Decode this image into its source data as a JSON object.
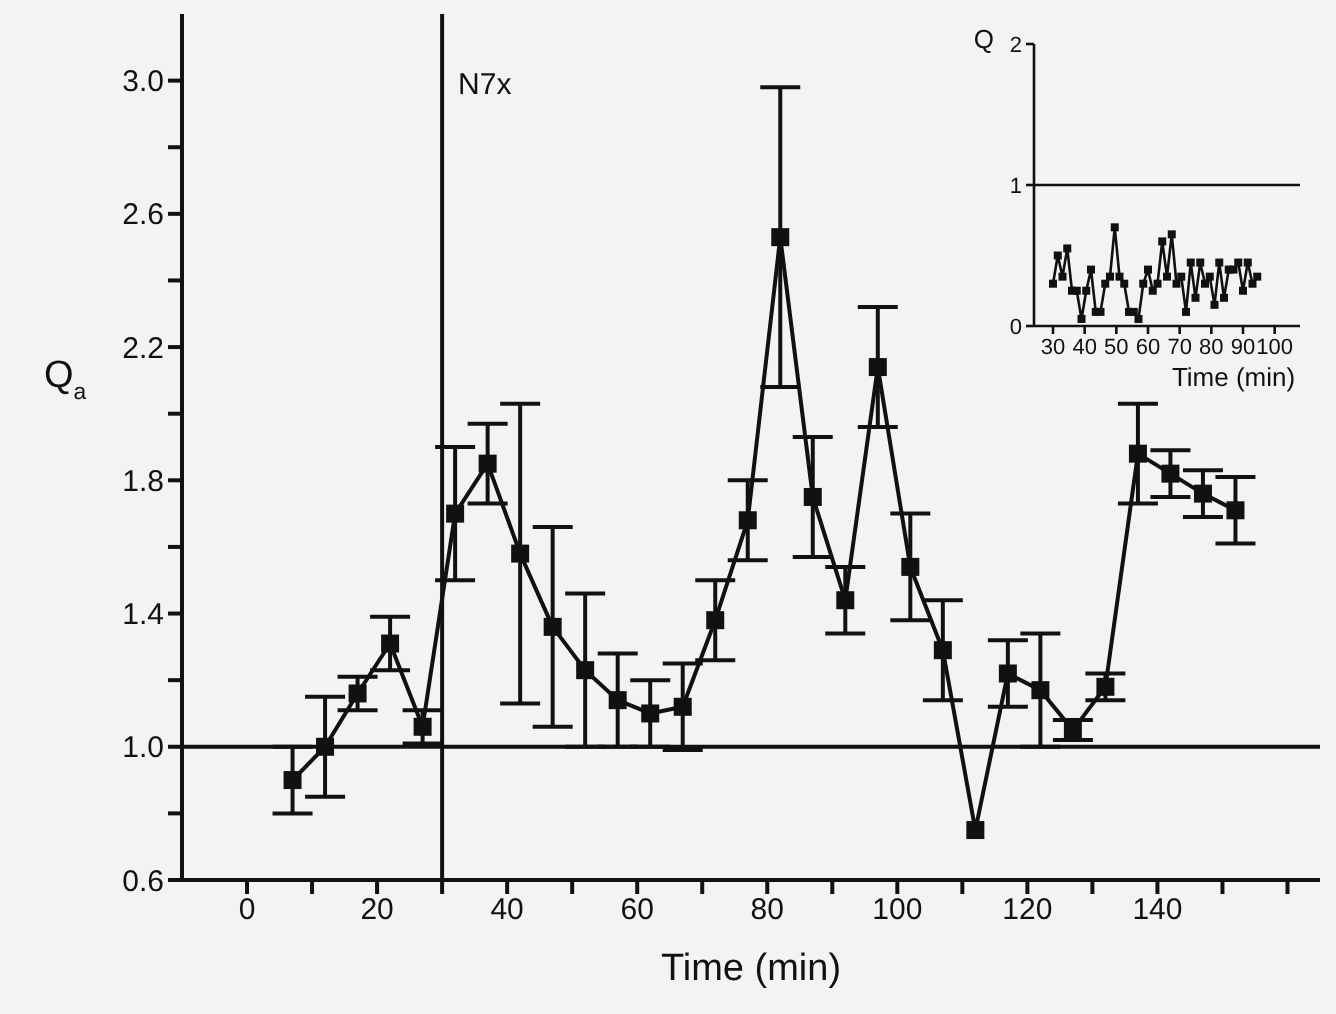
{
  "chart_data": [
    {
      "type": "line",
      "xlabel": "Time (min)",
      "ylabel": "Q$_{a}$",
      "marker": "square",
      "x": [
        7,
        12,
        17,
        22,
        27,
        32,
        37,
        42,
        47,
        52,
        57,
        62,
        67,
        72,
        77,
        82,
        87,
        92,
        97,
        102,
        107,
        112,
        117,
        122,
        127,
        132,
        137,
        142,
        147,
        152
      ],
      "series": [
        {
          "color": "#111111",
          "values": [
            0.9,
            1.0,
            1.16,
            1.31,
            1.06,
            1.7,
            1.85,
            1.58,
            1.36,
            1.23,
            1.14,
            1.1,
            1.12,
            1.38,
            1.68,
            2.53,
            1.75,
            1.44,
            2.14,
            1.54,
            1.29,
            0.75,
            1.22,
            1.17,
            1.05,
            1.18,
            1.88,
            1.82,
            1.76,
            1.71
          ],
          "errors": [
            0.1,
            0.15,
            0.05,
            0.08,
            0.05,
            0.2,
            0.12,
            0.45,
            0.3,
            0.23,
            0.14,
            0.1,
            0.13,
            0.12,
            0.12,
            0.45,
            0.18,
            0.1,
            0.18,
            0.16,
            0.15,
            null,
            0.1,
            0.17,
            0.03,
            0.04,
            0.15,
            0.07,
            0.07,
            0.1
          ]
        }
      ],
      "xlim": [
        -10,
        165
      ],
      "xticks": [
        {
          "value": 0,
          "label": "0"
        },
        {
          "value": 10,
          "label": null
        },
        {
          "value": 20,
          "label": "20"
        },
        {
          "value": 30,
          "label": null
        },
        {
          "value": 40,
          "label": "40"
        },
        {
          "value": 50,
          "label": null
        },
        {
          "value": 60,
          "label": "60"
        },
        {
          "value": 70,
          "label": null
        },
        {
          "value": 80,
          "label": "80"
        },
        {
          "value": 90,
          "label": null
        },
        {
          "value": 100,
          "label": "100"
        },
        {
          "value": 110,
          "label": null
        },
        {
          "value": 120,
          "label": "120"
        },
        {
          "value": 130,
          "label": null
        },
        {
          "value": 140,
          "label": "140"
        },
        {
          "value": 150,
          "label": null
        },
        {
          "value": 160,
          "label": null
        }
      ],
      "ylim": [
        0.6,
        3.2
      ],
      "yticks": [
        {
          "value": 0.6,
          "label": "0.6"
        },
        {
          "value": 0.8,
          "label": null
        },
        {
          "value": 1.0,
          "label": "1.0"
        },
        {
          "value": 1.2,
          "label": null
        },
        {
          "value": 1.4,
          "label": "1.4"
        },
        {
          "value": 1.6,
          "label": null
        },
        {
          "value": 1.8,
          "label": "1.8"
        },
        {
          "value": 2.0,
          "label": null
        },
        {
          "value": 2.2,
          "label": "2.2"
        },
        {
          "value": 2.4,
          "label": null
        },
        {
          "value": 2.6,
          "label": "2.6"
        },
        {
          "value": 2.8,
          "label": null
        },
        {
          "value": 3.0,
          "label": "3.0"
        }
      ],
      "ref_lines": [
        {
          "axis": "y",
          "value": 1.0,
          "label": null
        },
        {
          "axis": "x",
          "value": 30,
          "label": "N7x"
        }
      ]
    },
    {
      "type": "line",
      "xlabel": "Time (min)",
      "ylabel": "Q",
      "marker": "square",
      "x": [
        30,
        31.5,
        33,
        34.5,
        36,
        37.5,
        39,
        40.5,
        42,
        43.5,
        45,
        46.5,
        48,
        49.5,
        51,
        52.5,
        54,
        55.5,
        57,
        58.5,
        60,
        61.5,
        63,
        64.5,
        66,
        67.5,
        69,
        70.5,
        72,
        73.5,
        75,
        76.5,
        78,
        79.5,
        81,
        82.5,
        84,
        85.5,
        87,
        88.5,
        90,
        91.5,
        93,
        94.5
      ],
      "series": [
        {
          "color": "#111111",
          "values": [
            0.3,
            0.5,
            0.35,
            0.55,
            0.25,
            0.25,
            0.05,
            0.25,
            0.4,
            0.1,
            0.1,
            0.3,
            0.35,
            0.7,
            0.35,
            0.3,
            0.1,
            0.1,
            0.05,
            0.3,
            0.4,
            0.25,
            0.3,
            0.6,
            0.35,
            0.65,
            0.3,
            0.35,
            0.1,
            0.45,
            0.2,
            0.45,
            0.3,
            0.35,
            0.15,
            0.45,
            0.2,
            0.4,
            0.4,
            0.45,
            0.25,
            0.45,
            0.3,
            0.35
          ]
        }
      ],
      "xlim": [
        24,
        108
      ],
      "xticks": [
        30,
        40,
        50,
        60,
        70,
        80,
        90,
        100
      ],
      "ylim": [
        0,
        2
      ],
      "yticks": [
        0,
        1,
        2
      ],
      "ref_lines": [
        {
          "axis": "y",
          "value": 1,
          "label": null
        }
      ]
    }
  ]
}
